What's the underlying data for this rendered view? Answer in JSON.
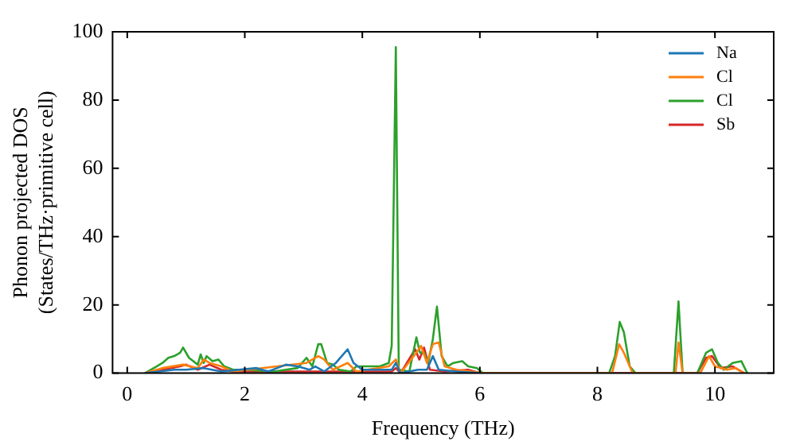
{
  "chart_data": {
    "type": "line",
    "xlabel": "Frequency (THz)",
    "ylabel": "Phonon projected DOS\n(States/THz·primitive cell)",
    "xlim": [
      -0.25,
      11
    ],
    "xticks": [
      0,
      2,
      4,
      6,
      8,
      10
    ],
    "ylim": [
      0,
      100
    ],
    "yticks": [
      0,
      20,
      40,
      60,
      80,
      100
    ],
    "grid": false,
    "legend": "top right",
    "marker": "none",
    "line_style": "solid",
    "series": [
      {
        "name": "Na",
        "color": "#1f77b4",
        "x": [
          0.3,
          0.8,
          1.0,
          1.3,
          1.6,
          2.2,
          2.4,
          2.7,
          2.9,
          3.1,
          3.2,
          3.35,
          3.55,
          3.75,
          3.85,
          4.0,
          4.5,
          4.57,
          4.65,
          4.95,
          5.1,
          5.2,
          5.3,
          5.6,
          6.0
        ],
        "values": [
          0,
          1,
          1,
          1.5,
          0.5,
          1.5,
          0.5,
          2.5,
          2,
          1,
          2,
          0.5,
          3,
          7,
          3,
          1,
          1,
          3,
          0,
          1,
          1,
          5,
          1,
          0.5,
          0
        ]
      },
      {
        "name": "Cl",
        "color": "#ff7f0e",
        "x": [
          0.3,
          0.6,
          0.95,
          1.2,
          1.3,
          1.4,
          1.6,
          1.8,
          3.05,
          3.25,
          3.35,
          3.5,
          3.75,
          3.9,
          4.45,
          4.57,
          4.65,
          4.92,
          5.0,
          5.1,
          5.2,
          5.3,
          5.4,
          5.6,
          6.05,
          8.25,
          8.37,
          8.45,
          8.6,
          9.33,
          9.38,
          9.45,
          9.75,
          9.9,
          10.0,
          10.2,
          10.35,
          10.5
        ],
        "values": [
          0,
          1.5,
          2.5,
          1.5,
          4,
          3,
          2,
          0.5,
          3,
          5,
          4,
          1,
          3,
          0.5,
          2,
          4,
          0,
          6,
          8,
          3,
          8.5,
          9,
          2,
          1,
          0,
          0,
          8.5,
          6,
          0,
          0,
          9,
          0,
          0,
          5,
          2,
          1,
          1.5,
          0
        ]
      },
      {
        "name": "Cl",
        "color": "#2ca02c",
        "x": [
          0.3,
          0.5,
          0.6,
          0.7,
          0.8,
          0.9,
          0.95,
          1.05,
          1.2,
          1.25,
          1.3,
          1.35,
          1.45,
          1.55,
          1.65,
          1.8,
          2.0,
          2.5,
          2.9,
          3.05,
          3.15,
          3.25,
          3.3,
          3.4,
          3.5,
          3.6,
          3.8,
          3.9,
          4.3,
          4.45,
          4.5,
          4.57,
          4.62,
          4.8,
          4.92,
          4.98,
          5.05,
          5.12,
          5.2,
          5.27,
          5.35,
          5.45,
          5.55,
          5.7,
          5.8,
          5.95,
          6.05,
          8.2,
          8.3,
          8.38,
          8.45,
          8.55,
          8.65,
          9.3,
          9.38,
          9.45,
          9.7,
          9.85,
          9.95,
          10.05,
          10.15,
          10.3,
          10.45,
          10.55
        ],
        "values": [
          0,
          2,
          3,
          4.5,
          5,
          6,
          7.5,
          4.5,
          2.5,
          5.5,
          3,
          5,
          3.5,
          4,
          2,
          1,
          1,
          0.5,
          1.5,
          4.5,
          2,
          8.5,
          8.5,
          3,
          2.5,
          1,
          0.5,
          2,
          2,
          3,
          8,
          95.5,
          1,
          0.5,
          10.5,
          6,
          6,
          3,
          10,
          19.5,
          5,
          2,
          3,
          3.5,
          2,
          1.5,
          0,
          0,
          5,
          15,
          12,
          2,
          0,
          0,
          21,
          0,
          0,
          6,
          7,
          3,
          1,
          3,
          3.5,
          0
        ]
      },
      {
        "name": "Sb",
        "color": "#d62728",
        "x": [
          0.3,
          0.6,
          0.9,
          1.0,
          1.2,
          1.4,
          1.6,
          1.8,
          3.0,
          3.5,
          4.5,
          4.57,
          4.65,
          4.9,
          4.97,
          5.05,
          5.15,
          5.4,
          5.8,
          6.0,
          9.7,
          9.85,
          9.95,
          10.1,
          10.3,
          10.4,
          10.5
        ],
        "values": [
          0,
          1,
          2,
          2.5,
          1,
          2.5,
          1,
          0.5,
          0.5,
          0.5,
          0.5,
          1.5,
          0,
          7,
          4,
          7.5,
          1,
          0.5,
          1,
          0,
          0,
          4.5,
          5,
          1.5,
          2,
          1,
          0
        ]
      }
    ]
  }
}
